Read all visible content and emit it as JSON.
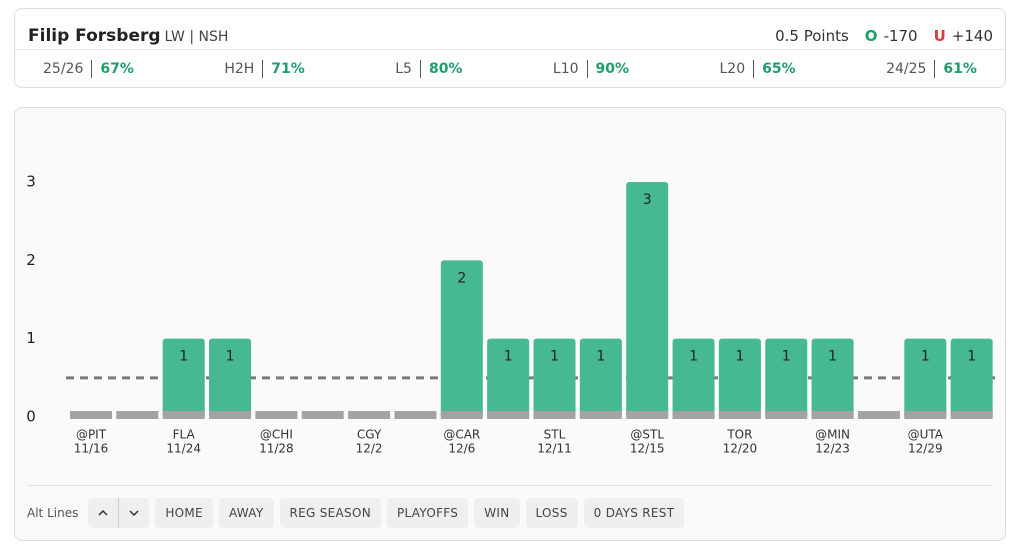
{
  "header": {
    "player": "Filip Forsberg",
    "position": "LW | NSH",
    "market": "0.5 Points",
    "over_label": "O",
    "over_odds": "-170",
    "under_label": "U",
    "under_odds": "+140"
  },
  "stats": [
    {
      "label": "25/26",
      "value": "67%"
    },
    {
      "label": "H2H",
      "value": "71%"
    },
    {
      "label": "L5",
      "value": "80%"
    },
    {
      "label": "L10",
      "value": "90%"
    },
    {
      "label": "L20",
      "value": "65%"
    },
    {
      "label": "24/25",
      "value": "61%"
    }
  ],
  "chart_data": {
    "type": "bar",
    "categories": [
      "@PIT",
      null,
      "FLA",
      null,
      "@CHI",
      null,
      "CGY",
      null,
      "@CAR",
      null,
      "STL",
      null,
      "@STL",
      null,
      "TOR",
      null,
      "@MIN",
      null,
      "@UTA",
      null
    ],
    "dates": [
      "11/16",
      null,
      "11/24",
      null,
      "11/28",
      null,
      "12/2",
      null,
      "12/6",
      null,
      "12/11",
      null,
      "12/15",
      null,
      "12/20",
      null,
      "12/23",
      null,
      "12/29",
      null
    ],
    "series": [
      {
        "color": "#47b990",
        "values": [
          0,
          0,
          1,
          1,
          0,
          0,
          0,
          0,
          2,
          1,
          1,
          1,
          3,
          1,
          1,
          1,
          1,
          0,
          1,
          1
        ]
      }
    ],
    "line": 0.5,
    "ylim": [
      0,
      3
    ],
    "yticks": [
      0,
      1,
      2,
      3
    ]
  },
  "filters": {
    "label": "Alt Lines",
    "buttons": [
      "HOME",
      "AWAY",
      "REG SEASON",
      "PLAYOFFS",
      "WIN",
      "LOSS",
      "0 DAYS REST"
    ]
  }
}
